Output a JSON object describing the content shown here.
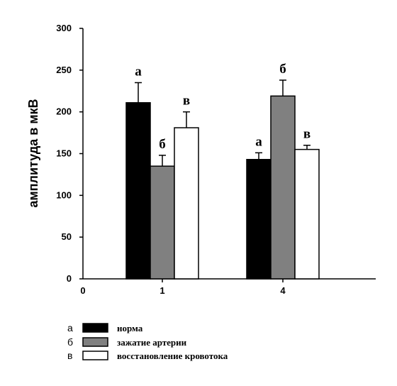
{
  "chart_data": {
    "type": "bar",
    "title": "",
    "xlabel": "",
    "ylabel": "амплитуда в мкВ",
    "ylim": [
      0,
      300
    ],
    "yticks": [
      "0",
      "50",
      "100",
      "150",
      "200",
      "250",
      "300"
    ],
    "x_origin_label": "0",
    "categories": [
      "1",
      "4"
    ],
    "series": [
      {
        "name": "норма",
        "letter": "а",
        "color": "#000000",
        "values": [
          211,
          143
        ],
        "errors": [
          24,
          8
        ],
        "bar_labels": [
          "а",
          "а"
        ]
      },
      {
        "name": "зажатие артерии",
        "letter": "б",
        "color": "#808080",
        "values": [
          135,
          219
        ],
        "errors": [
          13,
          19
        ],
        "bar_labels": [
          "б",
          "б"
        ]
      },
      {
        "name": "восстановление кровотока",
        "letter": "в",
        "color": "#ffffff",
        "values": [
          181,
          155
        ],
        "errors": [
          19,
          5
        ],
        "bar_labels": [
          "в",
          "в"
        ]
      }
    ],
    "grid": false,
    "legend_position": "bottom-left"
  }
}
